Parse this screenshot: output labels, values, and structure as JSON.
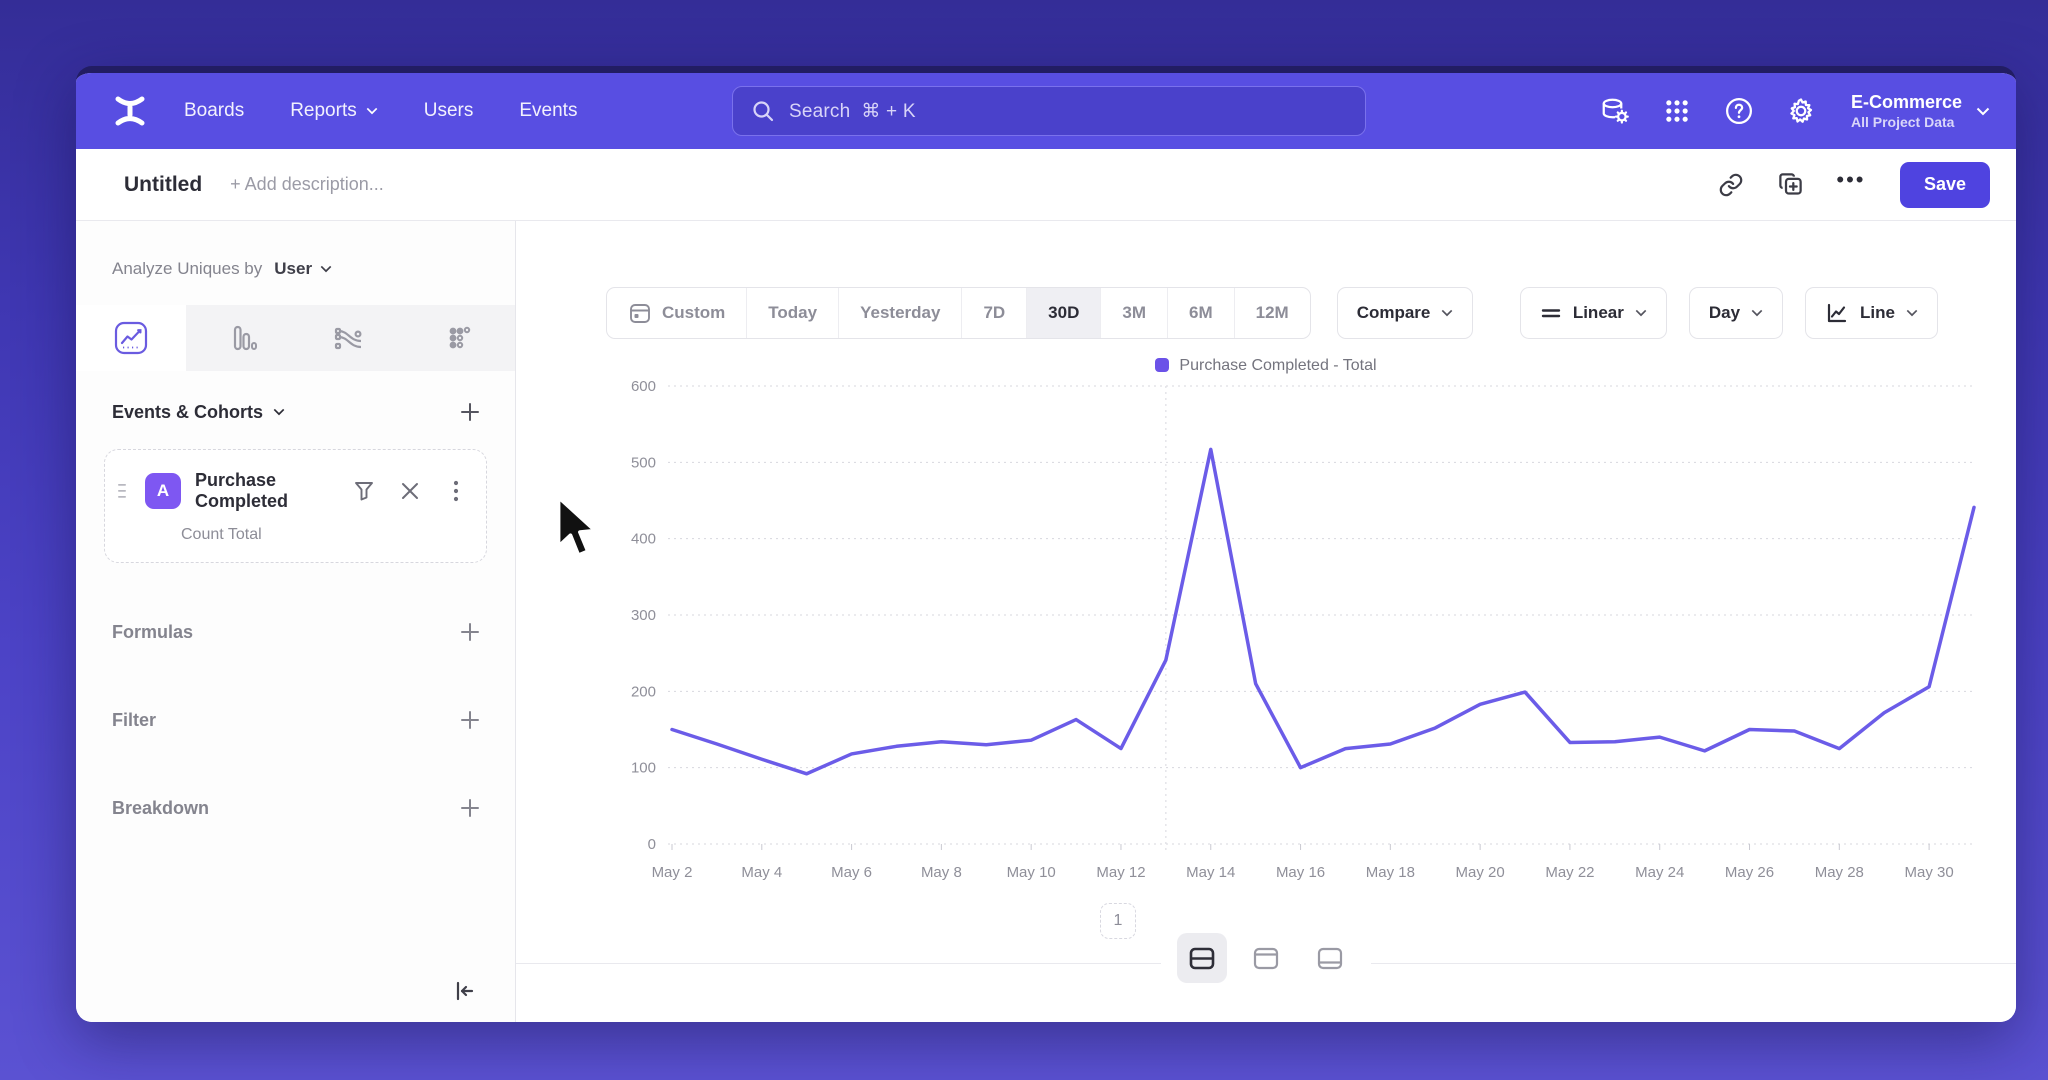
{
  "theme": {
    "accent": "#4f43e0",
    "nav_bg": "#584ee2",
    "line_color": "#6b5ce8",
    "badge_bg": "#7e57f2",
    "legend_square": "#6b52e8"
  },
  "nav": {
    "items": [
      {
        "label": "Boards",
        "has_chevron": false
      },
      {
        "label": "Reports",
        "has_chevron": true
      },
      {
        "label": "Users",
        "has_chevron": false
      },
      {
        "label": "Events",
        "has_chevron": false
      }
    ],
    "search": {
      "placeholder": "Search",
      "shortcut": "⌘ + K"
    },
    "icons": [
      "data-sources-icon",
      "apps-grid-icon",
      "help-icon",
      "settings-gear-icon"
    ],
    "project": {
      "name": "E-Commerce",
      "scope": "All Project Data"
    }
  },
  "toolbar": {
    "title": "Untitled",
    "description_placeholder": "+ Add description...",
    "more_label": "•••",
    "save_label": "Save"
  },
  "sidebar": {
    "analyze_prefix": "Analyze Uniques by",
    "analyze_value": "User",
    "tabs": [
      "insights-line-chart",
      "bar-chart",
      "flows",
      "retention-dots"
    ],
    "active_tab": 0,
    "events_section_title": "Events & Cohorts",
    "event_card": {
      "badge": "A",
      "name": "Purchase Completed",
      "metric": "Count Total"
    },
    "rows": [
      {
        "label": "Formulas"
      },
      {
        "label": "Filter"
      },
      {
        "label": "Breakdown"
      }
    ]
  },
  "controls": {
    "date_ranges": [
      "Custom",
      "Today",
      "Yesterday",
      "7D",
      "30D",
      "3M",
      "6M",
      "12M"
    ],
    "active_range": "30D",
    "compare_label": "Compare",
    "scale_label": "Linear",
    "interval_label": "Day",
    "chart_type_label": "Line"
  },
  "chart_data": {
    "type": "line",
    "legend": "Purchase Completed - Total",
    "x": [
      "May 2",
      "May 3",
      "May 4",
      "May 5",
      "May 6",
      "May 7",
      "May 8",
      "May 9",
      "May 10",
      "May 11",
      "May 12",
      "May 13",
      "May 14",
      "May 15",
      "May 16",
      "May 17",
      "May 18",
      "May 19",
      "May 20",
      "May 21",
      "May 22",
      "May 23",
      "May 24",
      "May 25",
      "May 26",
      "May 27",
      "May 28",
      "May 29",
      "May 30",
      "May 31"
    ],
    "x_tick_every": 2,
    "series": [
      {
        "name": "Purchase Completed - Total",
        "values": [
          150,
          131,
          111,
          92,
          118,
          128,
          134,
          130,
          136,
          163,
          125,
          241,
          517,
          210,
          100,
          125,
          131,
          152,
          183,
          199,
          133,
          134,
          140,
          122,
          150,
          148,
          125,
          172,
          206,
          441
        ]
      }
    ],
    "ylim": [
      0,
      600
    ],
    "yticks": [
      0,
      100,
      200,
      300,
      400,
      500,
      600
    ],
    "grid": "dotted-horizontal",
    "vline_index": 11,
    "legend_position": "top-center"
  },
  "footer": {
    "page": "1"
  }
}
